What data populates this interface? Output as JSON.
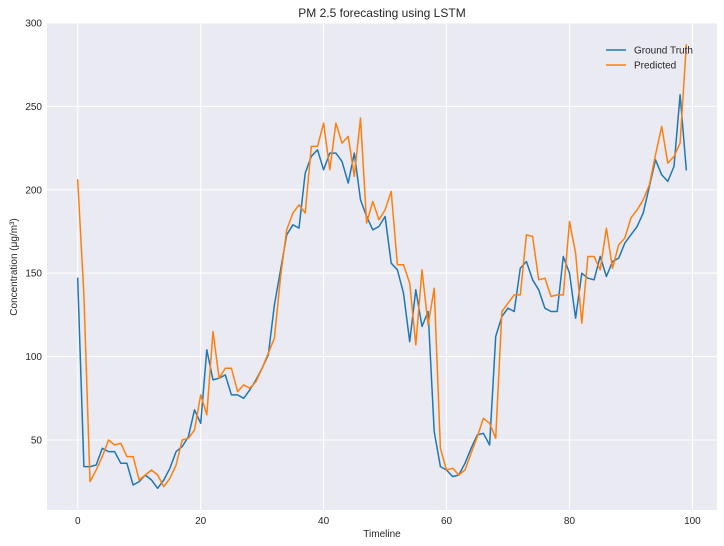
{
  "chart_data": {
    "type": "line",
    "title": "PM 2.5 forecasting using LSTM",
    "xlabel": "Timeline",
    "ylabel": "Concentration (μg/m³)",
    "xlim": [
      -5,
      104
    ],
    "ylim": [
      8,
      300
    ],
    "x_ticks": [
      0,
      20,
      40,
      60,
      80,
      100
    ],
    "y_ticks": [
      50,
      100,
      150,
      200,
      250,
      300
    ],
    "grid": true,
    "legend_position": "top-right",
    "background_color": "#eaeaf2",
    "x": [
      0,
      1,
      2,
      3,
      4,
      5,
      6,
      7,
      8,
      9,
      10,
      11,
      12,
      13,
      14,
      15,
      16,
      17,
      18,
      19,
      20,
      21,
      22,
      23,
      24,
      25,
      26,
      27,
      28,
      29,
      30,
      31,
      32,
      33,
      34,
      35,
      36,
      37,
      38,
      39,
      40,
      41,
      42,
      43,
      44,
      45,
      46,
      47,
      48,
      49,
      50,
      51,
      52,
      53,
      54,
      55,
      56,
      57,
      58,
      59,
      60,
      61,
      62,
      63,
      64,
      65,
      66,
      67,
      68,
      69,
      70,
      71,
      72,
      73,
      74,
      75,
      76,
      77,
      78,
      79,
      80,
      81,
      82,
      83,
      84,
      85,
      86,
      87,
      88,
      89,
      90,
      91,
      92,
      93,
      94,
      95,
      96,
      97,
      98,
      99
    ],
    "series": [
      {
        "name": "Ground Truth",
        "color": "#1f77b4",
        "values": [
          147,
          34,
          34,
          35,
          45,
          43,
          43,
          36,
          36,
          23,
          25,
          29,
          26,
          21,
          26,
          33,
          43,
          46,
          52,
          68,
          60,
          104,
          86,
          87,
          89,
          77,
          77,
          75,
          80,
          86,
          93,
          101,
          131,
          152,
          173,
          179,
          177,
          210,
          220,
          224,
          212,
          222,
          222,
          217,
          204,
          222,
          194,
          184,
          176,
          178,
          184,
          156,
          152,
          138,
          109,
          140,
          118,
          127,
          55,
          34,
          32,
          28,
          29,
          36,
          45,
          53,
          54,
          47,
          112,
          124,
          129,
          127,
          153,
          157,
          146,
          140,
          129,
          127,
          127,
          160,
          150,
          123,
          150,
          147,
          146,
          160,
          148,
          157,
          159,
          168,
          173,
          178,
          186,
          202,
          218,
          209,
          205,
          214,
          257,
          212
        ]
      },
      {
        "name": "Predicted",
        "color": "#ff7f0e",
        "values": [
          206,
          137,
          25,
          32,
          40,
          50,
          47,
          48,
          40,
          40,
          26,
          29,
          32,
          29,
          22,
          27,
          35,
          50,
          51,
          56,
          77,
          65,
          115,
          87,
          93,
          93,
          79,
          83,
          81,
          85,
          93,
          102,
          111,
          148,
          176,
          186,
          191,
          186,
          226,
          226,
          240,
          212,
          240,
          228,
          232,
          208,
          243,
          180,
          193,
          182,
          188,
          199,
          155,
          155,
          144,
          107,
          152,
          119,
          141,
          45,
          32,
          33,
          29,
          32,
          42,
          52,
          63,
          60,
          51,
          127,
          132,
          137,
          137,
          173,
          172,
          146,
          147,
          136,
          137,
          137,
          181,
          162,
          120,
          160,
          160,
          152,
          177,
          153,
          167,
          171,
          183,
          188,
          194,
          203,
          221,
          238,
          216,
          220,
          228,
          287
        ]
      }
    ]
  }
}
